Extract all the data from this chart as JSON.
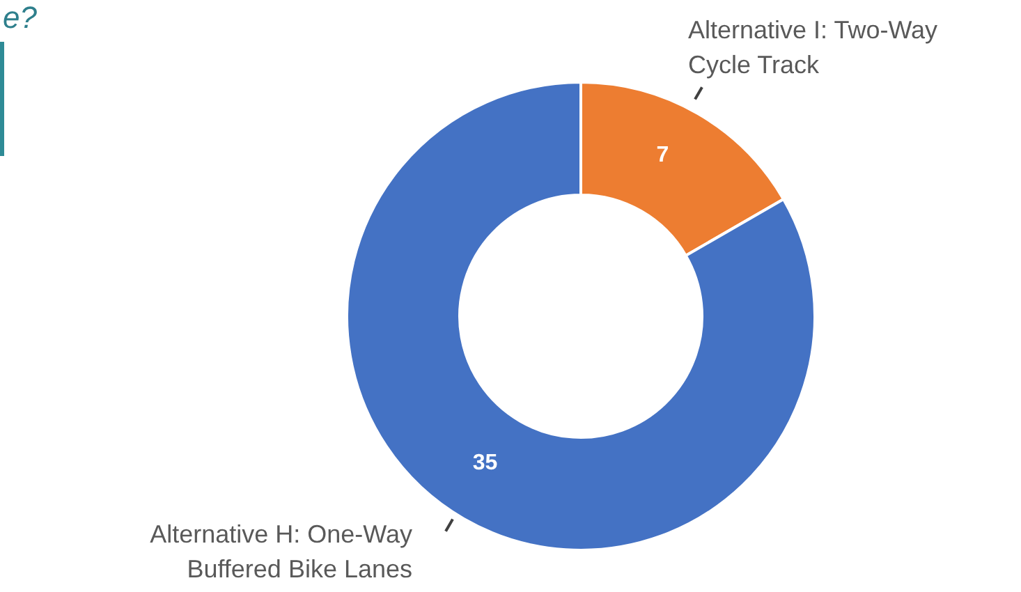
{
  "chart_data": {
    "type": "donut",
    "categories": [
      "Alternative I: Two-Way Cycle Track",
      "Alternative H: One-Way Buffered Bike Lanes"
    ],
    "values": [
      7,
      35
    ],
    "colors": [
      "#ed7d31",
      "#4472c4"
    ],
    "data_labels": true,
    "annotations": [
      "e?"
    ]
  }
}
